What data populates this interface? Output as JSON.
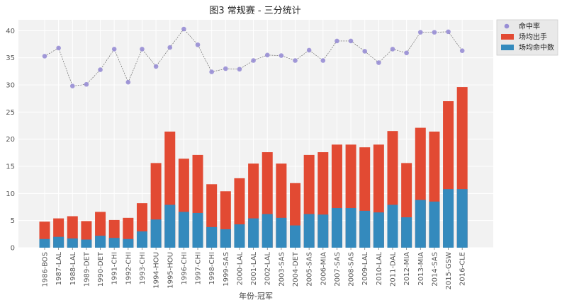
{
  "chart_data": {
    "type": "bar",
    "title": "图3 常规赛 - 三分统计",
    "xlabel": "年份-冠军",
    "ylabel": "",
    "ylim": [
      0,
      42
    ],
    "yticks": [
      0,
      5,
      10,
      15,
      20,
      25,
      30,
      35,
      40
    ],
    "grid": true,
    "legend_position": "top-right",
    "categories": [
      "1986-BOS",
      "1987-LAL",
      "1988-LAL",
      "1989-DET",
      "1990-DET",
      "1991-CHI",
      "1992-CHI",
      "1993-CHI",
      "1994-HOU",
      "1995-HOU",
      "1996-CHI",
      "1997-CHI",
      "1998-CHI",
      "1999-SAS",
      "2000-LAL",
      "2001-LAL",
      "2002-LAL",
      "2003-SAS",
      "2004-DET",
      "2005-SAS",
      "2006-MIA",
      "2007-SAS",
      "2008-SAS",
      "2009-LAL",
      "2010-LAL",
      "2011-DAL",
      "2012-MIA",
      "2013-MIA",
      "2014-SAS",
      "2015-GSW",
      "2016-CLE"
    ],
    "series": [
      {
        "name": "命中率",
        "kind": "scatter-line",
        "color": "#988ED5",
        "values": [
          35.3,
          36.8,
          29.8,
          30.1,
          32.8,
          36.6,
          30.5,
          36.6,
          33.4,
          36.9,
          40.3,
          37.4,
          32.4,
          33.0,
          32.9,
          34.5,
          35.5,
          35.4,
          34.5,
          36.4,
          34.5,
          38.1,
          38.1,
          36.2,
          34.1,
          36.6,
          35.9,
          39.7,
          39.7,
          39.8,
          36.3
        ]
      },
      {
        "name": "场均出手",
        "kind": "bar",
        "color": "#E24A33",
        "values": [
          4.8,
          5.4,
          5.8,
          4.9,
          6.6,
          5.1,
          5.5,
          8.2,
          15.6,
          21.4,
          16.4,
          17.1,
          11.7,
          10.4,
          12.8,
          15.5,
          17.6,
          15.5,
          11.9,
          17.1,
          17.6,
          19.0,
          19.0,
          18.5,
          19.0,
          21.5,
          15.6,
          22.1,
          21.4,
          27.0,
          29.6
        ]
      },
      {
        "name": "场均命中数",
        "kind": "bar",
        "color": "#348ABD",
        "values": [
          1.6,
          2.0,
          1.7,
          1.5,
          2.2,
          1.8,
          1.6,
          3.0,
          5.2,
          7.9,
          6.6,
          6.4,
          3.8,
          3.4,
          4.3,
          5.4,
          6.2,
          5.5,
          4.1,
          6.2,
          6.1,
          7.3,
          7.3,
          6.8,
          6.5,
          7.9,
          5.6,
          8.8,
          8.5,
          10.8,
          10.8
        ]
      }
    ]
  }
}
